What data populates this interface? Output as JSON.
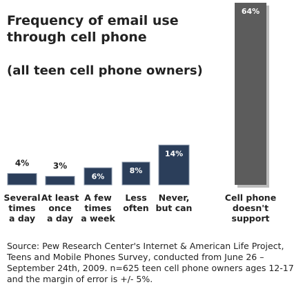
{
  "title": "Frequency of email use through cell phone",
  "subtitle": "(all teen cell phone owners)",
  "source": "Source: Pew Research Center's Internet & American Life Project, Teens and Mobile Phones Survey, conducted from June 26 – September 24th, 2009. n=625 teen cell phone owners ages 12-17 and the margin of error is +/- 5%.",
  "chart_data": {
    "type": "bar",
    "title": "Frequency of email use through cell phone",
    "subtitle": "(all teen cell phone owners)",
    "xlabel": "",
    "ylabel": "",
    "categories": [
      [
        "Several",
        "times",
        "a day"
      ],
      [
        "At least",
        "once",
        "a day"
      ],
      [
        "A few",
        "times",
        "a week"
      ],
      [
        "Less",
        "often"
      ],
      [
        "Never,",
        "but can"
      ],
      [
        "Cell phone",
        "doesn't",
        "support"
      ]
    ],
    "values": [
      4,
      3,
      6,
      8,
      14,
      64
    ],
    "value_labels": [
      "4%",
      "3%",
      "6%",
      "8%",
      "14%",
      "64%"
    ],
    "ylim": [
      0,
      64
    ],
    "grid": false,
    "legend": "none",
    "colors": {
      "bar": "#2b3e5a",
      "bar_outline": "#8a97aa",
      "last_bar": "#5c5c5c",
      "last_bar_shadow": "#bbbbbb"
    }
  }
}
